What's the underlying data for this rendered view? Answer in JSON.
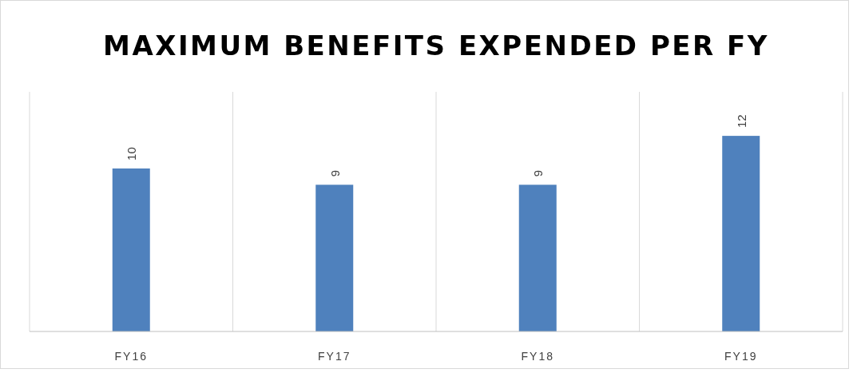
{
  "chart_data": {
    "type": "bar",
    "title": "MAXIMUM BENEFITS EXPENDED PER FY",
    "categories": [
      "FY16",
      "FY17",
      "FY18",
      "FY19"
    ],
    "values": [
      10,
      9,
      9,
      12
    ],
    "color": "#4f81bd",
    "data_labels": true,
    "grid": "x"
  }
}
